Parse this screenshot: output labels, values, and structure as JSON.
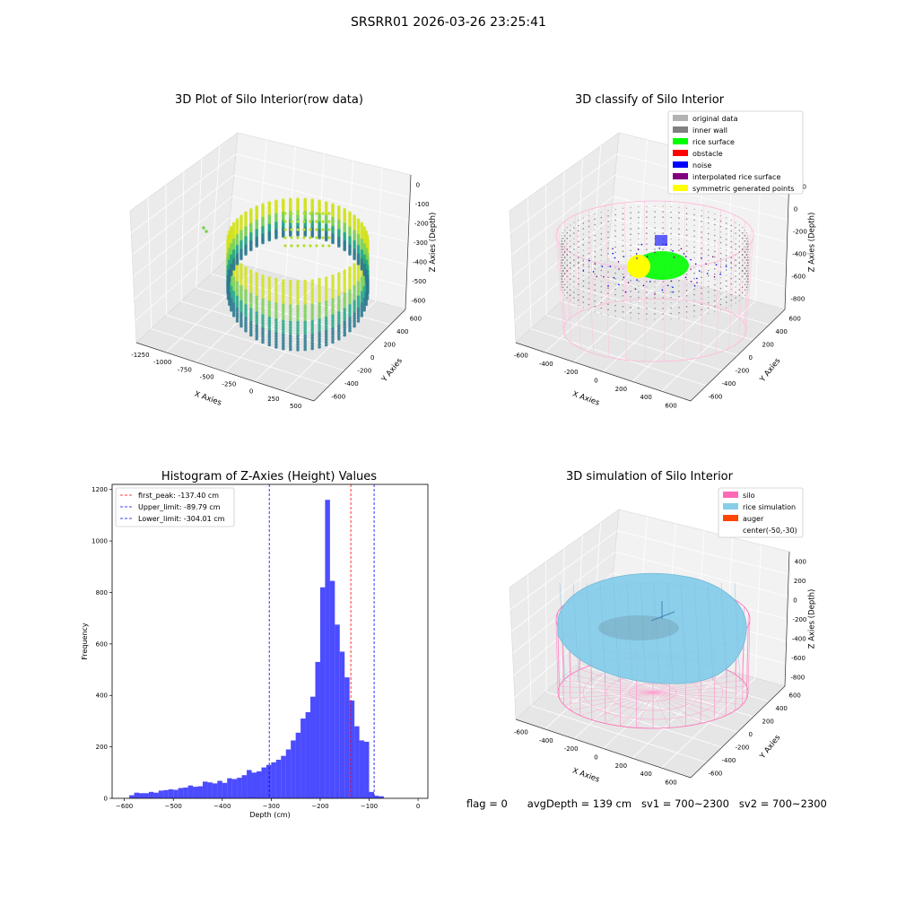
{
  "page_title": "SRSRR01 2026-03-26 23:25:41",
  "panels": {
    "raw": {
      "title": "3D Plot of Silo Interior(row data)",
      "xlabel": "X Axies",
      "ylabel": "Y Axies",
      "zlabel": "Z Axies (Depth)",
      "xticks": [
        "-1250",
        "-1000",
        "-750",
        "-500",
        "-250",
        "0",
        "250",
        "500"
      ],
      "yticks": [
        "-600",
        "-400",
        "-200",
        "0",
        "200",
        "400",
        "600"
      ],
      "zticks": [
        "0",
        "-100",
        "-200",
        "-300",
        "-400",
        "-500",
        "-600"
      ]
    },
    "classify": {
      "title": "3D classify of Silo Interior",
      "xlabel": "X Axies",
      "ylabel": "Y Axies",
      "zlabel": "Z Axies (Depth)",
      "xticks": [
        "-600",
        "-400",
        "-200",
        "0",
        "200",
        "400",
        "600"
      ],
      "yticks": [
        "-600",
        "-400",
        "-200",
        "0",
        "200",
        "400",
        "600"
      ],
      "zticks": [
        "200",
        "0",
        "-200",
        "-400",
        "-600",
        "-800"
      ],
      "legend": [
        {
          "label": "original data",
          "color": "#b3b3b3"
        },
        {
          "label": "inner wall",
          "color": "#808080"
        },
        {
          "label": "rice surface",
          "color": "#00ff00"
        },
        {
          "label": "obstacle",
          "color": "#ff0000"
        },
        {
          "label": "noise",
          "color": "#0000ff"
        },
        {
          "label": "interpolated rice surface",
          "color": "#800080"
        },
        {
          "label": "symmetric generated points",
          "color": "#ffff00"
        }
      ]
    },
    "simulation": {
      "title": "3D simulation of Silo Interior",
      "xlabel": "X Axies",
      "ylabel": "Y Axies",
      "zlabel": "Z Axies (Depth)",
      "xticks": [
        "-600",
        "-400",
        "-200",
        "0",
        "200",
        "400",
        "600"
      ],
      "yticks": [
        "-600",
        "-400",
        "-200",
        "0",
        "200",
        "400",
        "600"
      ],
      "zticks": [
        "400",
        "200",
        "0",
        "-200",
        "-400",
        "-600",
        "-800"
      ],
      "legend": [
        {
          "label": "silo",
          "color": "#ff69b4"
        },
        {
          "label": "rice simulation",
          "color": "#87ceeb"
        },
        {
          "label": "auger",
          "color": "#ff4500"
        },
        {
          "label": "center(-50,-30)",
          "color": ""
        }
      ]
    }
  },
  "chart_data": {
    "type": "bar",
    "title": "Histogram of Z-Axies (Height) Values",
    "xlabel": "Depth (cm)",
    "ylabel": "Frequency",
    "xlim": [
      -625,
      20
    ],
    "ylim": [
      0,
      1220
    ],
    "bar_color": "#0000ff",
    "bin_width": 10,
    "xticks": [
      -600,
      -500,
      -400,
      -300,
      -200,
      -100,
      0
    ],
    "yticks": [
      0,
      200,
      400,
      600,
      800,
      1000,
      1200
    ],
    "bins_start": [
      -590,
      -580,
      -570,
      -560,
      -550,
      -540,
      -530,
      -520,
      -510,
      -500,
      -490,
      -480,
      -470,
      -460,
      -450,
      -440,
      -430,
      -420,
      -410,
      -400,
      -390,
      -380,
      -370,
      -360,
      -350,
      -340,
      -330,
      -320,
      -310,
      -300,
      -290,
      -280,
      -270,
      -260,
      -250,
      -240,
      -230,
      -220,
      -210,
      -200,
      -190,
      -180,
      -170,
      -160,
      -150,
      -140,
      -130,
      -120,
      -110,
      -100,
      -90,
      -80,
      -70,
      -60,
      -50,
      -40,
      -30,
      -20,
      -10
    ],
    "values": [
      12,
      22,
      20,
      20,
      25,
      22,
      30,
      32,
      35,
      33,
      40,
      42,
      50,
      45,
      47,
      65,
      62,
      58,
      68,
      60,
      78,
      75,
      80,
      90,
      110,
      100,
      105,
      120,
      130,
      140,
      150,
      165,
      190,
      225,
      255,
      310,
      335,
      395,
      530,
      820,
      1160,
      845,
      675,
      570,
      470,
      380,
      280,
      225,
      220,
      25,
      10,
      8,
      0,
      0,
      0,
      0,
      0,
      0,
      0
    ],
    "reference_lines": [
      {
        "label": "first_peak: -137.40 cm",
        "x": -137.4,
        "color": "#ff0000"
      },
      {
        "label": "Upper_limit: -89.79 cm",
        "x": -89.79,
        "color": "#0000ff"
      },
      {
        "label": "Lower_limit: -304.01 cm",
        "x": -304.01,
        "color": "#0000ff"
      }
    ],
    "legend_position": "upper left"
  },
  "footer": {
    "flag": "flag = 0",
    "avg_depth": "avgDepth = 139 cm",
    "sv1": "sv1 = 700~2300",
    "sv2": "sv2 = 700~2300"
  }
}
